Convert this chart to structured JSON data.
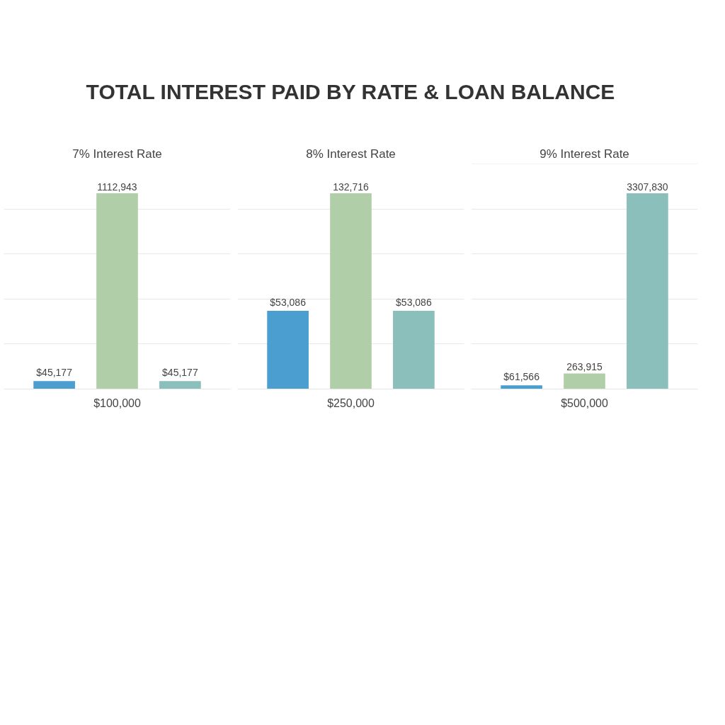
{
  "chart_data": [
    {
      "type": "bar",
      "title": "TOTAL INTEREST PAID BY RATE & LOAN BALANCE",
      "subtitle": "7% Interest Rate",
      "xlabel": "$100,000",
      "categories": [
        null,
        null,
        null
      ],
      "values": [
        45177,
        1112943,
        45177
      ],
      "colors": [
        "#4a9fd0",
        "#b0cfa8",
        "#8bbfbb"
      ],
      "value_labels": [
        "$45,177",
        "1112,943",
        "$45,177"
      ],
      "grid": "y"
    },
    {
      "type": "bar",
      "subtitle": "8% Interest Rate",
      "xlabel": "$250,000",
      "categories": [
        null,
        null,
        null
      ],
      "values": [
        53086,
        132716,
        53086
      ],
      "colors": [
        "#4a9fd0",
        "#b0cfa8",
        "#8bbfbb"
      ],
      "value_labels": [
        "$53,086",
        "132,716",
        "$53,086"
      ],
      "grid": "y"
    },
    {
      "type": "bar",
      "subtitle": "9% Interest Rate",
      "xlabel": "$500,000",
      "categories": [
        null,
        null,
        null
      ],
      "values": [
        61566,
        263915,
        3307830
      ],
      "colors": [
        "#4a9fd0",
        "#b0cfa8",
        "#8bbfbb"
      ],
      "value_labels": [
        "$61,566",
        "263,915",
        "3307,830"
      ],
      "grid": "y"
    }
  ]
}
